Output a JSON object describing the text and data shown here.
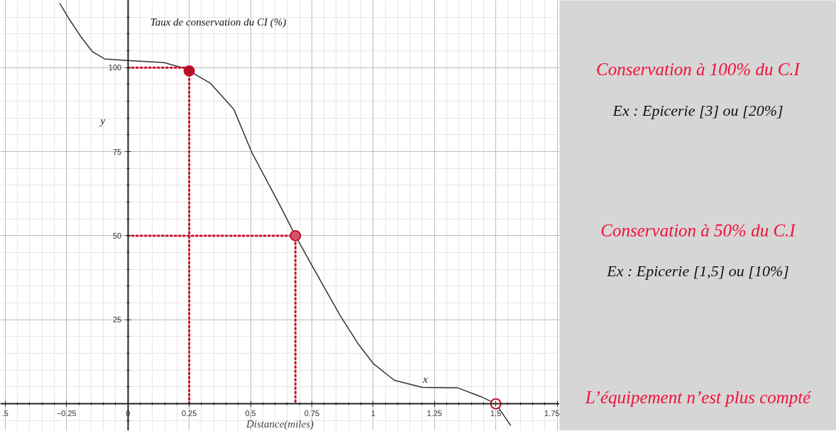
{
  "chart_data": [
    {
      "type": "line",
      "xlabel": "Distance(miles)",
      "ylabel": "Taux de conservation du CI (%)",
      "xlim": [
        -0.52,
        1.76
      ],
      "ylim": [
        -8,
        120
      ],
      "xticks": [
        {
          "value": -0.5,
          "label": ".5"
        },
        -0.25,
        0,
        0.25,
        0.5,
        0.75,
        1,
        1.25,
        1.5,
        1.75
      ],
      "yticks": [
        25,
        50,
        75,
        100
      ],
      "grid": true,
      "annotations": [
        "y",
        "x"
      ],
      "series": [
        {
          "type": "line",
          "color": "#333333",
          "marker": "none",
          "line_style": "solid",
          "x": [
            -0.277,
            -0.24,
            -0.19,
            -0.144,
            -0.095,
            0,
            0.145,
            0.222,
            0.25,
            0.337,
            0.432,
            0.505,
            0.625,
            0.683,
            0.75,
            0.865,
            0.94,
            1.0,
            1.086,
            1.2,
            1.346,
            1.44,
            1.5,
            1.56
          ],
          "values": [
            119,
            114.5,
            109,
            104.7,
            102.6,
            102.1,
            101.5,
            100,
            99,
            95.3,
            87.6,
            74.8,
            58.3,
            50,
            41.2,
            26.3,
            17.7,
            12,
            7,
            4.9,
            4.7,
            2.1,
            0,
            -6.4
          ]
        },
        {
          "type": "line",
          "color": "#c8102e",
          "marker": "none",
          "line_style": "dotted",
          "x": [
            0,
            0.25,
            0.25
          ],
          "values": [
            100,
            100,
            0
          ]
        },
        {
          "type": "line",
          "color": "#c8102e",
          "marker": "none",
          "line_style": "dotted",
          "x": [
            0,
            0.683,
            0.683
          ],
          "values": [
            50,
            50,
            0
          ]
        },
        {
          "type": "scatter",
          "marker": "circle",
          "x": [
            0.25,
            0.683,
            1.5
          ],
          "values": [
            99,
            50,
            0
          ],
          "colors": [
            "#b5102a",
            "#d65468",
            "#ffffff"
          ]
        }
      ]
    },
    {
      "type": "other",
      "annotations": [
        "Conservation à 100% du C.I",
        "Ex : Epicerie [3] ou [20%]",
        "Conservation à 50% du C.I",
        "Ex : Epicerie [1,5] ou [10%]",
        "L’équipement n’est plus compté"
      ],
      "colors": [
        "#f0123c",
        "#111111",
        "#f0123c",
        "#111111",
        "#f0123c"
      ]
    }
  ]
}
